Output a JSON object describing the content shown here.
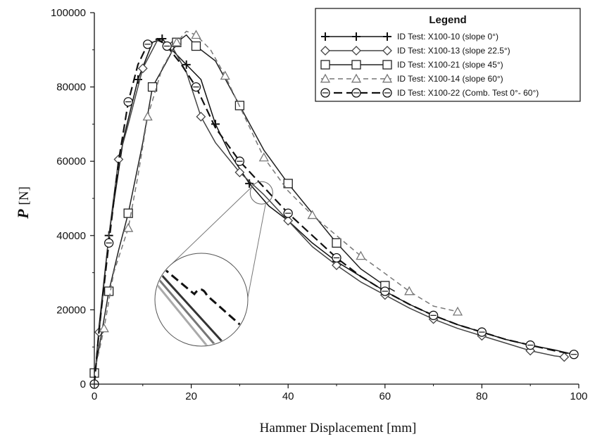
{
  "chart_data": {
    "type": "line",
    "title": "",
    "xlabel": "Hammer Displacement [mm]",
    "ylabel_symbol": "P",
    "ylabel_unit": "[N]",
    "xlim": [
      0,
      100
    ],
    "ylim": [
      0,
      100000
    ],
    "x_ticks": [
      "0",
      "20",
      "40",
      "60",
      "80",
      "100"
    ],
    "y_ticks": [
      "0",
      "20000",
      "40000",
      "60000",
      "80000",
      "100000"
    ],
    "grid": false,
    "legend": {
      "title": "Legend",
      "position": "top-right"
    },
    "series": [
      {
        "name": "ID Test: X100-10 (slope 0°)",
        "marker": "plus",
        "color": "#111111",
        "dash": "solid",
        "x": [
          0,
          1,
          3,
          6,
          9,
          12,
          14,
          16,
          19,
          22,
          25,
          28,
          32,
          36,
          40,
          45,
          50,
          55,
          60,
          65,
          70,
          75,
          80,
          85,
          90,
          95,
          99
        ],
        "y": [
          0,
          16000,
          40000,
          66000,
          82000,
          92000,
          93000,
          90000,
          86000,
          82000,
          70000,
          62000,
          54000,
          48000,
          44000,
          38000,
          33000,
          29000,
          25000,
          21500,
          18500,
          16000,
          14000,
          12000,
          10500,
          9200,
          8000
        ]
      },
      {
        "name": "ID Test: X100-13 (slope 22.5°)",
        "marker": "diamond",
        "color": "#444444",
        "dash": "solid",
        "x": [
          0,
          1,
          3,
          5,
          7,
          10,
          13,
          16,
          19,
          22,
          25,
          30,
          35,
          40,
          45,
          50,
          55,
          60,
          65,
          70,
          75,
          80,
          85,
          90,
          95,
          97
        ],
        "y": [
          0,
          14000,
          40000,
          60500,
          70000,
          85000,
          92500,
          91000,
          84000,
          72000,
          65000,
          57000,
          51000,
          44000,
          37000,
          32000,
          27500,
          24000,
          20500,
          17500,
          15000,
          13000,
          11000,
          9000,
          7600,
          7300
        ]
      },
      {
        "name": "ID Test: X100-21 (slope 45°)",
        "marker": "square",
        "color": "#222222",
        "dash": "solid",
        "x": [
          0,
          1,
          3,
          5,
          7,
          10,
          12,
          15,
          17,
          19,
          21,
          25,
          30,
          35,
          40,
          45,
          50,
          55,
          60,
          62
        ],
        "y": [
          3000,
          10000,
          25000,
          36000,
          46000,
          65000,
          80000,
          87000,
          92000,
          94000,
          91000,
          87000,
          75000,
          63000,
          54000,
          46000,
          38000,
          31000,
          26500,
          25000
        ]
      },
      {
        "name": "ID Test: X100-14 (slope 60°)",
        "marker": "triangle",
        "color": "#777777",
        "dash": "dashed",
        "x": [
          0,
          2,
          4,
          7,
          9,
          11,
          14,
          17,
          19,
          21,
          24,
          27,
          31,
          35,
          40,
          45,
          50,
          55,
          60,
          65,
          70,
          75
        ],
        "y": [
          3000,
          15000,
          30000,
          42000,
          56000,
          72000,
          85000,
          92000,
          95000,
          94000,
          90000,
          83000,
          72000,
          61000,
          52000,
          45500,
          40000,
          34500,
          29800,
          25000,
          21000,
          19500
        ]
      },
      {
        "name": "ID Test: X100-22 (Comb. Test 0°- 60°)",
        "marker": "circle",
        "color": "#111111",
        "dash": "longdash",
        "x": [
          0,
          1,
          3,
          5,
          7,
          9,
          11,
          13,
          15,
          18,
          21,
          25,
          30,
          35,
          40,
          45,
          50,
          55,
          60,
          65,
          70,
          75,
          80,
          85,
          90,
          95,
          99
        ],
        "y": [
          0,
          15000,
          38000,
          60000,
          76000,
          86000,
          91500,
          93000,
          91000,
          86000,
          80000,
          69000,
          60000,
          53000,
          46000,
          40000,
          34000,
          29000,
          25000,
          21500,
          18500,
          16000,
          14000,
          12000,
          10500,
          9000,
          8000
        ]
      }
    ],
    "annotation": "zoom-inset"
  }
}
